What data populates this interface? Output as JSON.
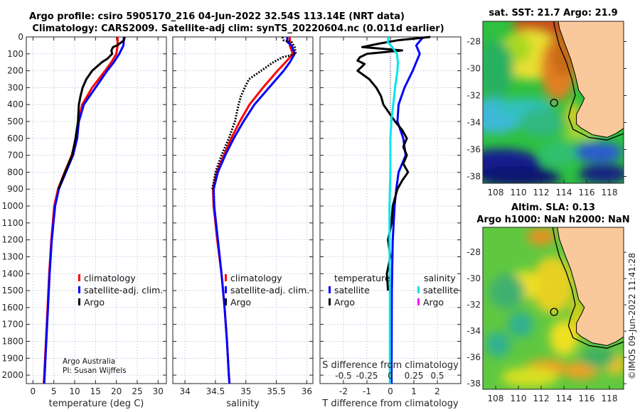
{
  "title": {
    "line1": "Argo profile: csiro 5905170_216 04-Jun-2022 32.54S 113.14E (NRT data)",
    "line2": "Climatology: CARS2009. Satellite-adj clim: synTS_20220604.nc (0.011d earlier)"
  },
  "colors": {
    "climatology": "#ff0000",
    "satellite": "#0000ff",
    "argo": "#000000",
    "sal_satellite": "#00e5ee",
    "sal_argo": "#ff00ff",
    "land": "#f9c99b"
  },
  "chart_data": [
    {
      "type": "line",
      "id": "temperature",
      "xlabel": "temperature (deg C)",
      "ylabel": "",
      "xlim": [
        -1.6,
        32
      ],
      "ylim": [
        2050,
        0
      ],
      "xticks": [
        0,
        5,
        10,
        15,
        20,
        25,
        30
      ],
      "yticks": [
        0,
        100,
        200,
        300,
        400,
        500,
        600,
        700,
        800,
        900,
        1000,
        1100,
        1200,
        1300,
        1400,
        1500,
        1600,
        1700,
        1800,
        1900,
        2000
      ],
      "grid": true,
      "legend": {
        "placement": "lower-right",
        "entries": [
          "climatology",
          "satellite-adj. clim.",
          "Argo"
        ]
      },
      "annotation": {
        "line1": "Argo Australia",
        "line2": "PI: Susan Wijffels"
      },
      "series": [
        {
          "name": "climatology",
          "depth": [
            0,
            50,
            100,
            150,
            200,
            300,
            400,
            500,
            600,
            700,
            800,
            900,
            1000,
            1200,
            1400,
            1600,
            1800,
            2000,
            2050
          ],
          "values": [
            20.3,
            20.3,
            20,
            18.8,
            17.3,
            14.2,
            11.8,
            10.9,
            10.3,
            9.3,
            7.6,
            6.0,
            5.1,
            4.4,
            3.9,
            3.5,
            3.1,
            2.7,
            2.6
          ]
        },
        {
          "name": "satellite-adj. clim.",
          "depth": [
            0,
            50,
            100,
            150,
            200,
            300,
            400,
            500,
            600,
            700,
            800,
            900,
            1000,
            1200,
            1400,
            1600,
            1800,
            2000,
            2050
          ],
          "values": [
            21.8,
            21.7,
            20.7,
            19.4,
            17.8,
            15.0,
            12.2,
            11.0,
            10.6,
            9.6,
            7.9,
            6.2,
            5.3,
            4.5,
            4.0,
            3.6,
            3.2,
            2.8,
            2.7
          ]
        },
        {
          "name": "Argo",
          "depth": [
            0,
            20,
            50,
            60,
            80,
            100,
            130,
            150,
            200,
            250,
            300,
            350,
            400,
            500,
            600,
            700,
            800,
            900
          ],
          "values": [
            22,
            21.8,
            20.2,
            19.2,
            18.8,
            19.0,
            17.8,
            16.5,
            14.2,
            12.8,
            11.9,
            11.4,
            11.0,
            10.8,
            10.2,
            9.4,
            7.7,
            6.1
          ]
        }
      ]
    },
    {
      "type": "line",
      "id": "salinity",
      "xlabel": "salinity",
      "xlim": [
        33.8,
        36.1
      ],
      "ylim": [
        2050,
        0
      ],
      "xticks": [
        34,
        34.5,
        35,
        35.5,
        36
      ],
      "grid": true,
      "legend": {
        "placement": "lower-right",
        "entries": [
          "climatology",
          "satellite-adj. clim.",
          "Argo"
        ]
      },
      "series": [
        {
          "name": "climatology",
          "depth": [
            0,
            50,
            100,
            150,
            200,
            300,
            400,
            500,
            600,
            700,
            800,
            900,
            1000,
            1200,
            1400,
            1600,
            1800,
            2000,
            2050
          ],
          "values": [
            35.72,
            35.72,
            35.77,
            35.65,
            35.52,
            35.28,
            35.06,
            34.9,
            34.76,
            34.64,
            34.52,
            34.46,
            34.47,
            34.53,
            34.6,
            34.65,
            34.69,
            34.72,
            34.73
          ]
        },
        {
          "name": "satellite-adj. clim.",
          "depth": [
            0,
            30,
            50,
            100,
            150,
            200,
            300,
            400,
            500,
            600,
            700,
            800,
            900,
            1000,
            1200,
            1400,
            1600,
            1800,
            2000,
            2050
          ],
          "values": [
            35.68,
            35.68,
            35.75,
            35.8,
            35.72,
            35.62,
            35.38,
            35.14,
            34.96,
            34.8,
            34.66,
            34.54,
            34.47,
            34.48,
            34.54,
            34.6,
            34.65,
            34.69,
            34.72,
            34.73
          ]
        },
        {
          "name": "Argo",
          "depth": [
            0,
            20,
            30,
            60,
            100,
            120,
            150,
            200,
            250,
            300,
            350,
            400,
            500,
            600,
            700,
            800,
            900
          ],
          "values": [
            35.6,
            35.62,
            35.75,
            35.8,
            35.82,
            35.6,
            35.45,
            35.25,
            35.05,
            34.98,
            34.92,
            34.88,
            34.82,
            34.72,
            34.6,
            34.5,
            34.45
          ]
        }
      ]
    },
    {
      "type": "line",
      "id": "difference",
      "xlabel": "T difference from climatology",
      "x2label": "S difference from climatology",
      "xlim": [
        -3,
        3
      ],
      "ylim": [
        2050,
        0
      ],
      "xticks": [
        -2,
        -1,
        0,
        1,
        2
      ],
      "x2ticks": [
        {
          "v": -0.5,
          "label": "-0.5"
        },
        {
          "v": -0.25,
          "label": "-0.25"
        },
        {
          "v": 0,
          "label": "0"
        },
        {
          "v": 0.25,
          "label": "0.25"
        },
        {
          "v": 0.5,
          "label": "0.5"
        }
      ],
      "x2scale": 4,
      "grid": true,
      "legend": {
        "placement": "lower",
        "temperature_title": "temperature",
        "salinity_title": "salinity",
        "entries": [
          "satellite",
          "Argo",
          "satellite",
          "Argo"
        ]
      },
      "series": [
        {
          "name": "T satellite",
          "depth": [
            0,
            50,
            100,
            150,
            200,
            300,
            400,
            500,
            600,
            700,
            800,
            900,
            1000,
            1200,
            1500,
            2000,
            2050
          ],
          "values": [
            1.4,
            1.1,
            1.25,
            1.1,
            0.95,
            0.6,
            0.35,
            0.3,
            0.55,
            0.65,
            0.35,
            0.25,
            0.18,
            0.1,
            0.06,
            0.05,
            0.05
          ]
        },
        {
          "name": "T Argo",
          "depth": [
            0,
            20,
            40,
            60,
            80,
            100,
            120,
            140,
            160,
            200,
            250,
            300,
            350,
            400,
            500,
            550,
            600,
            650,
            700,
            750,
            800,
            850,
            900,
            1000,
            1100,
            1200,
            1300,
            1400,
            1500
          ],
          "values": [
            1.7,
            0.3,
            -0.5,
            -1.2,
            0.5,
            -1.0,
            -1.3,
            -1.4,
            -1.1,
            -1.4,
            -0.9,
            -0.6,
            -0.4,
            -0.3,
            0.2,
            0.5,
            0.7,
            0.55,
            0.7,
            0.55,
            0.75,
            0.5,
            0.3,
            0.1,
            0.05,
            -0.1,
            0,
            -0.15,
            -0.1
          ]
        },
        {
          "name": "S satellite",
          "depth": [
            0,
            30,
            60,
            100,
            150,
            200,
            300,
            400,
            500,
            600,
            800,
            1000,
            1200,
            1500,
            2000,
            2050
          ],
          "values": [
            -0.02,
            -0.03,
            0.02,
            0.07,
            0.08,
            0.075,
            0.05,
            0.03,
            0.01,
            0,
            0,
            -0.01,
            -0.01,
            -0.005,
            -0.005,
            -0.005
          ]
        }
      ]
    }
  ],
  "maps": {
    "sst": {
      "title": "sat. SST: 21.7 Argo: 21.9"
    },
    "sla": {
      "title_line1": "Altim. SLA: 0.13",
      "title_line2": "Argo h1000: NaN h2000: NaN"
    },
    "lon_ticks": [
      "108",
      "110",
      "112",
      "114",
      "116",
      "118"
    ],
    "lat_ticks": [
      "-28",
      "-30",
      "-32",
      "-34",
      "-36",
      "-38"
    ],
    "float_position": {
      "lon": 113.14,
      "lat": -32.54
    }
  },
  "credit": "©IMOS 09-Jun-2022 11:41:28"
}
